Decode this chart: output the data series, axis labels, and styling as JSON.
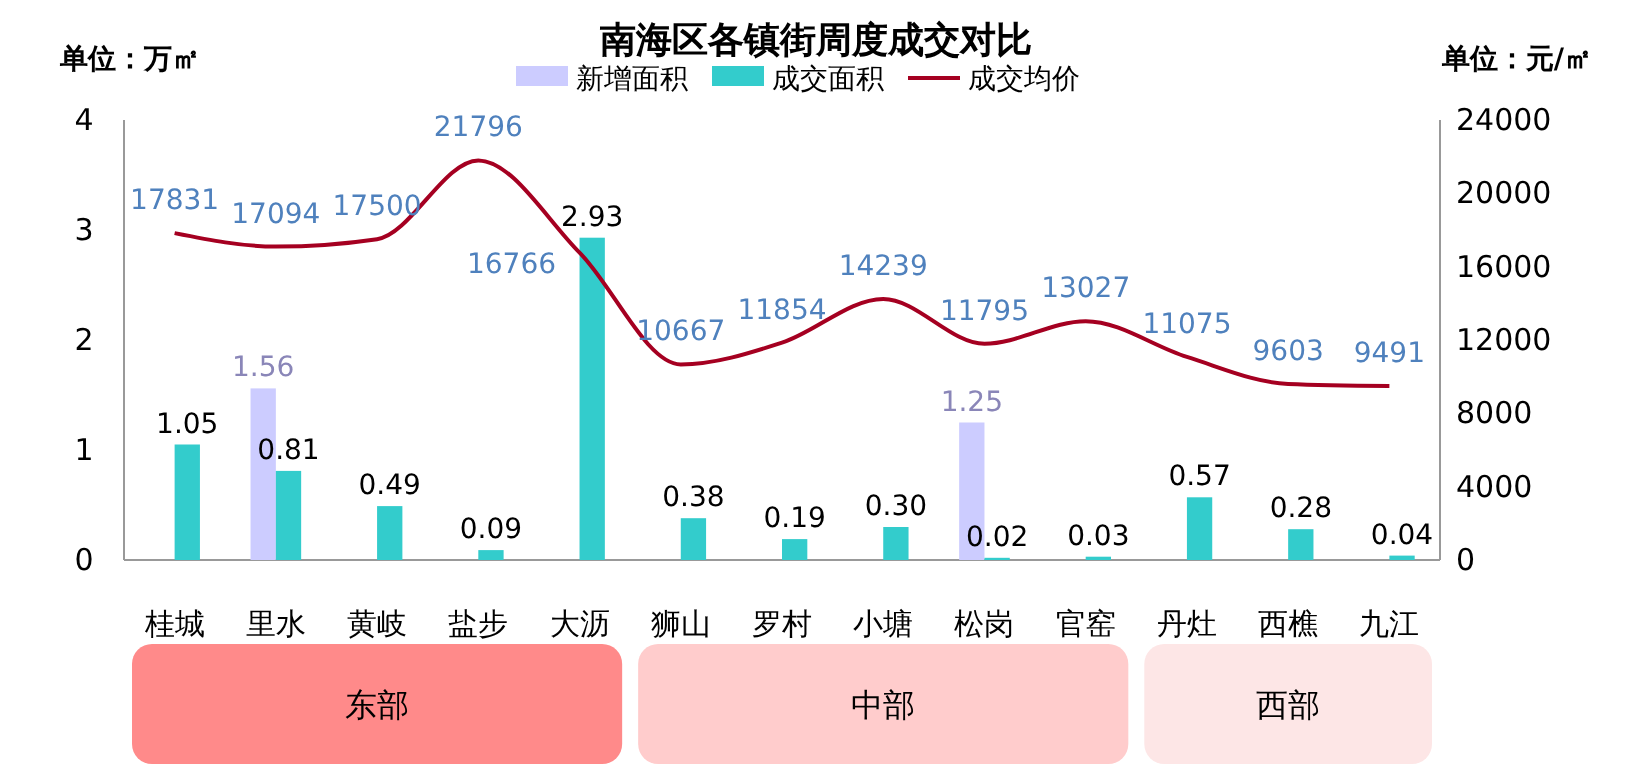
{
  "chart_data": {
    "type": "bar",
    "title": "南海区各镇街周度成交对比",
    "ylabel": "单位：万㎡",
    "y2label": "单位：元/㎡",
    "categories": [
      "桂城",
      "里水",
      "黄岐",
      "盐步",
      "大沥",
      "狮山",
      "罗村",
      "小塘",
      "松岗",
      "官窑",
      "丹灶",
      "西樵",
      "九江"
    ],
    "series": [
      {
        "name": "新增面积",
        "color": "#ccccff",
        "values": [
          null,
          1.56,
          null,
          null,
          null,
          null,
          null,
          null,
          1.25,
          null,
          null,
          null,
          null
        ]
      },
      {
        "name": "成交面积",
        "color": "#33cccc",
        "values": [
          1.05,
          0.81,
          0.49,
          0.09,
          2.93,
          0.38,
          0.19,
          0.3,
          0.02,
          0.03,
          0.57,
          0.28,
          0.04
        ],
        "value_labels": [
          "1.05",
          "0.81",
          "0.49",
          "0.09",
          "2.93",
          "0.38",
          "0.19",
          "0.30",
          "0.02",
          "0.03",
          "0.57",
          "0.28",
          "0.04"
        ]
      },
      {
        "name": "成交均价",
        "type": "line",
        "axis": "y2",
        "color": "#a50021",
        "values": [
          17831,
          17094,
          17500,
          21796,
          16766,
          10667,
          11854,
          14239,
          11795,
          13027,
          11075,
          9603,
          9491
        ]
      }
    ],
    "ylim": [
      0,
      4
    ],
    "yticks": [
      0,
      1,
      2,
      3,
      4
    ],
    "y2lim": [
      0,
      24000
    ],
    "y2ticks": [
      0,
      4000,
      8000,
      12000,
      16000,
      20000,
      24000
    ],
    "annotations": [
      "东部",
      "中部",
      "西部"
    ],
    "data_labels": true,
    "legend": "top",
    "grid": false,
    "marker": "none"
  }
}
